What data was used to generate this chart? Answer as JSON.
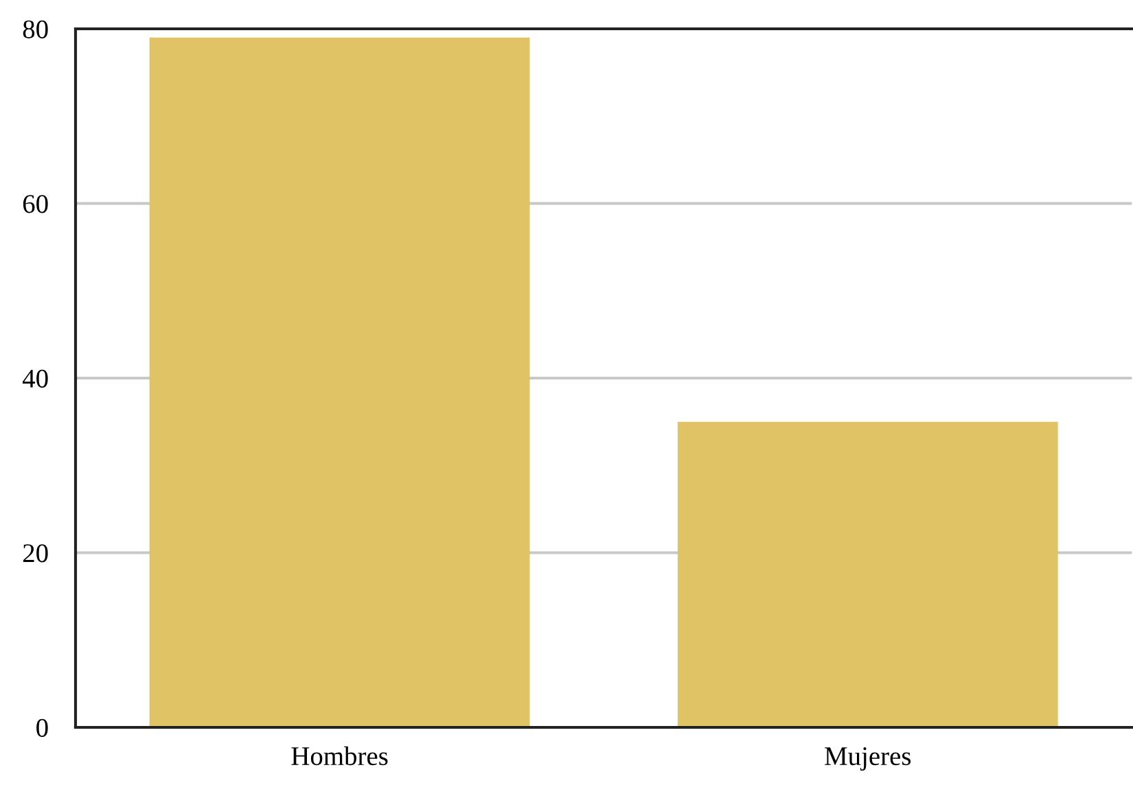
{
  "chart_data": {
    "type": "bar",
    "categories": [
      "Hombres",
      "Mujeres"
    ],
    "values": [
      79,
      35
    ],
    "color": "#e0c365",
    "ylim": [
      0,
      80
    ],
    "yticks": [
      0,
      20,
      40,
      60,
      80
    ],
    "grid": "y"
  }
}
